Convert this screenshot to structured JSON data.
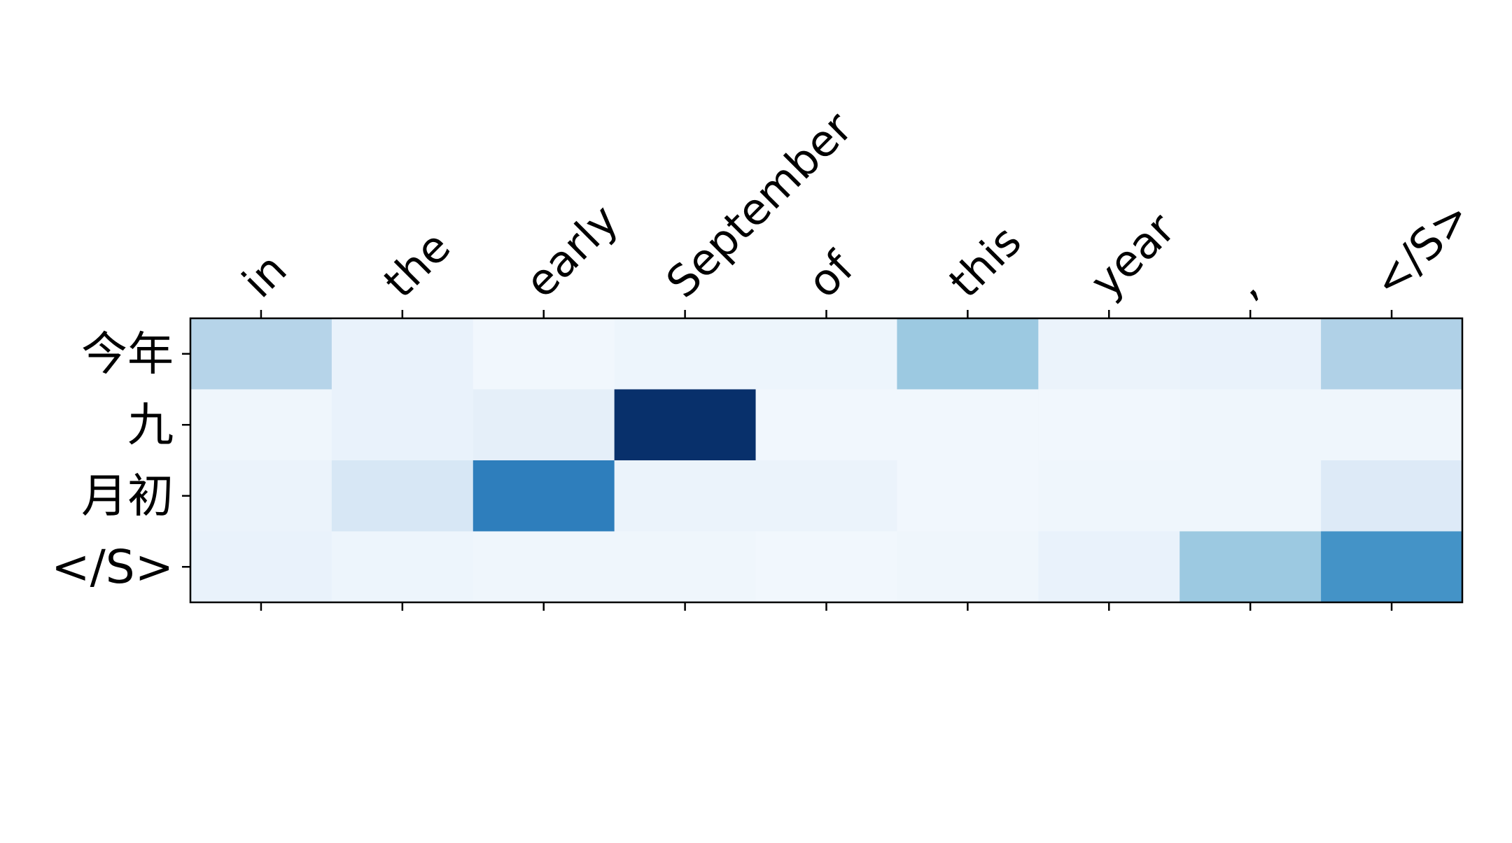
{
  "chart_data": {
    "type": "heatmap",
    "title": "",
    "xlabel": "",
    "ylabel": "",
    "x_labels": [
      "in",
      "the",
      "early",
      "September",
      "of",
      "this",
      "year",
      ",",
      "</S>"
    ],
    "y_labels": [
      "今年",
      "九",
      "月初",
      "</S>"
    ],
    "colormap": "Blues",
    "value_range": [
      0,
      1
    ],
    "values": [
      [
        0.3,
        0.07,
        0.03,
        0.05,
        0.05,
        0.38,
        0.06,
        0.07,
        0.32
      ],
      [
        0.04,
        0.07,
        0.09,
        1.0,
        0.03,
        0.03,
        0.03,
        0.04,
        0.04
      ],
      [
        0.06,
        0.16,
        0.7,
        0.06,
        0.06,
        0.03,
        0.04,
        0.04,
        0.13
      ],
      [
        0.07,
        0.05,
        0.04,
        0.04,
        0.03,
        0.04,
        0.07,
        0.38,
        0.62
      ]
    ],
    "x_tick_position": "top and bottom (labels on top)",
    "grid": false,
    "legend": "none"
  }
}
